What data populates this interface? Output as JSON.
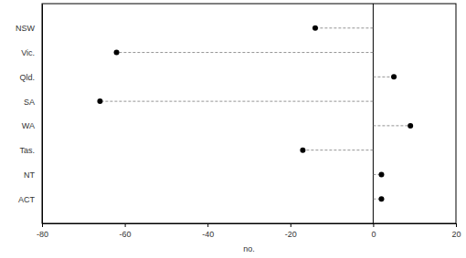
{
  "chart_data": {
    "type": "dot",
    "orientation": "horizontal",
    "categories": [
      "NSW",
      "Vic.",
      "Qld.",
      "SA",
      "WA",
      "Tas.",
      "NT",
      "ACT"
    ],
    "values": [
      -14,
      -62,
      5,
      -66,
      9,
      -17,
      2,
      2
    ],
    "color": "#000000",
    "marker": "circle",
    "line_style": "dashed",
    "x_label": "no.",
    "xlim": [
      -80,
      20
    ],
    "xticks": [
      -80,
      -60,
      -40,
      -20,
      0,
      20
    ],
    "grid": false
  }
}
